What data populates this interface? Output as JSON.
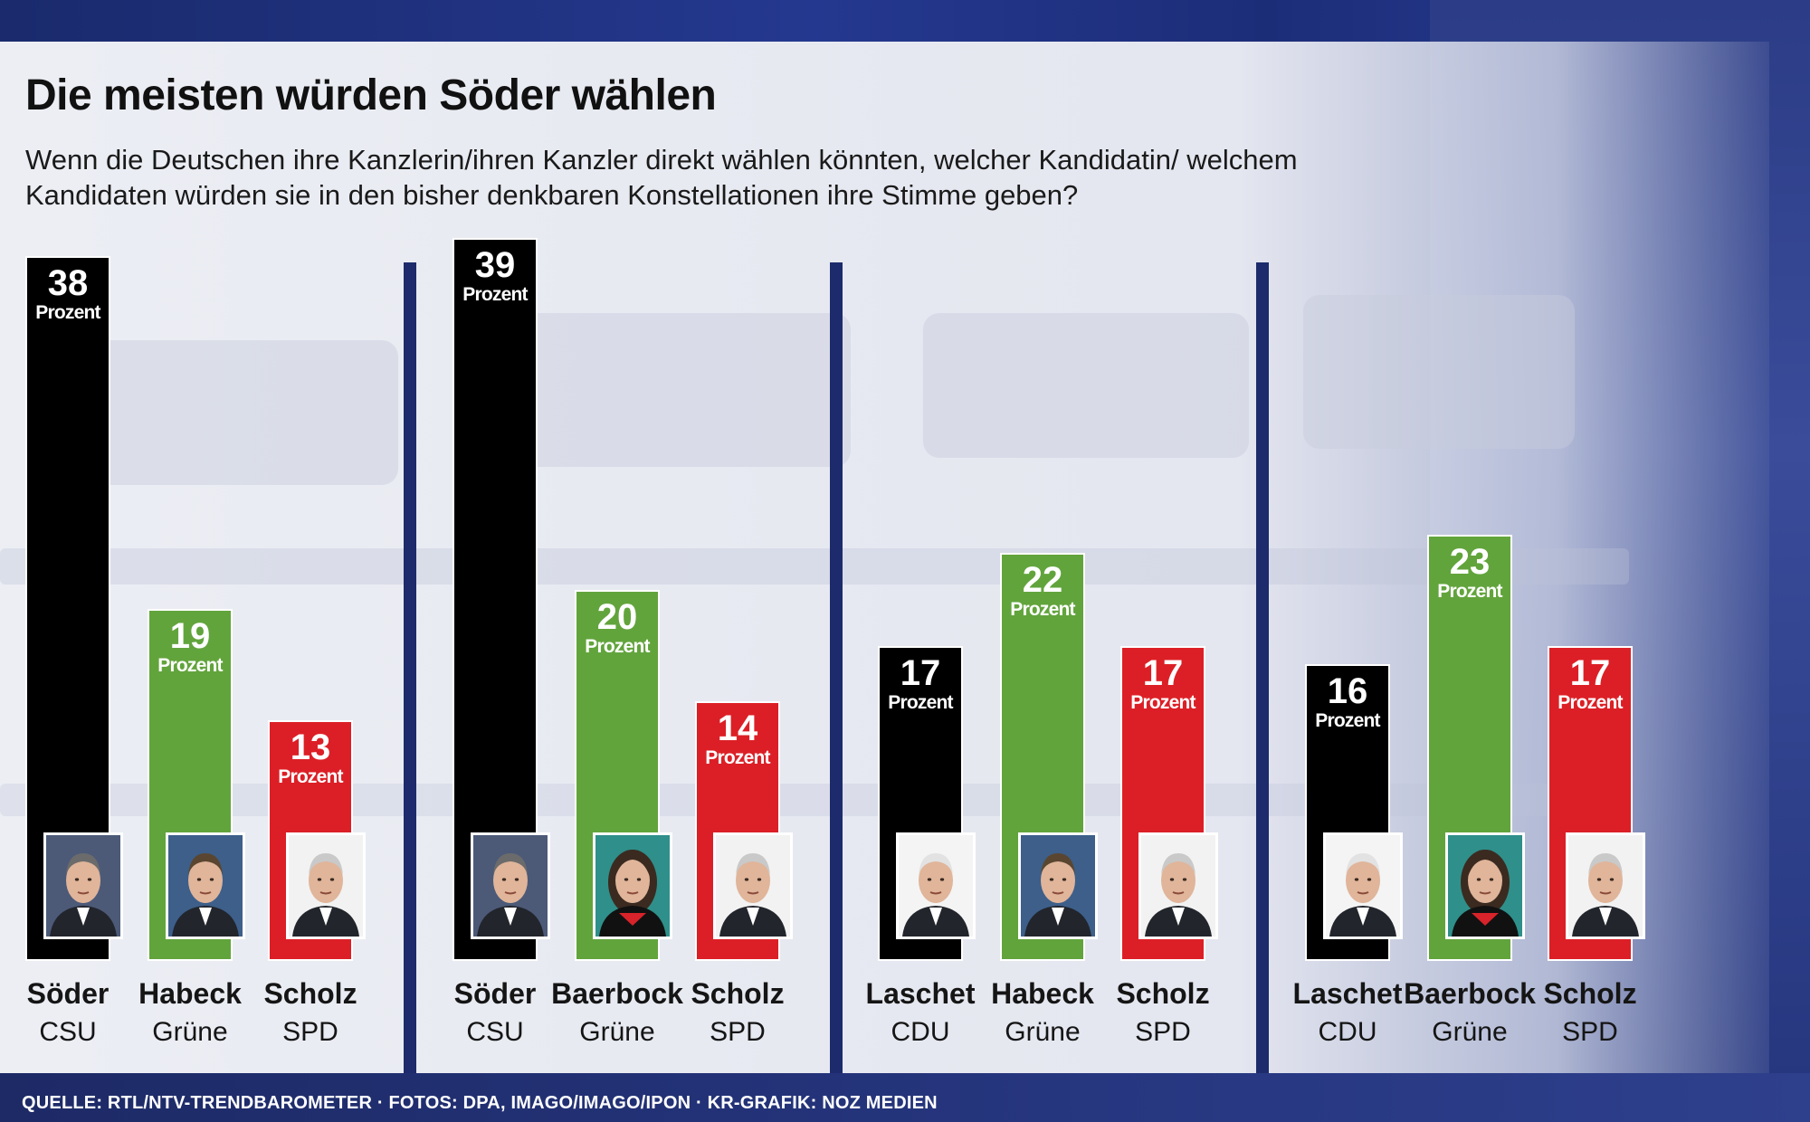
{
  "header": {
    "title": "Die meisten würden Söder wählen",
    "subtitle": "Wenn die Deutschen ihre Kanzlerin/ihren Kanzler direkt wählen könnten, welcher Kandidatin/ welchem Kandidaten würden sie in den bisher denkbaren Konstellationen ihre Stimme geben?"
  },
  "footer": {
    "source": "QUELLE: RTL/NTV-TRENDBAROMETER · FOTOS: DPA, IMAGO/IMAGO/IPON · KR-GRAFIK: NOZ MEDIEN"
  },
  "colors": {
    "union": "#000000",
    "gruene": "#62a43c",
    "spd": "#dc1f26",
    "divider": "#1d2b6c"
  },
  "unit_label": "Prozent",
  "chart_data": [
    {
      "type": "bar",
      "categories": [
        "Söder",
        "Habeck",
        "Scholz"
      ],
      "parties": [
        "CSU",
        "Grüne",
        "SPD"
      ],
      "values": [
        38,
        19,
        13
      ],
      "colors": [
        "#000000",
        "#62a43c",
        "#dc1f26"
      ],
      "photos": [
        "soeder-photo",
        "habeck-photo",
        "scholz-photo"
      ]
    },
    {
      "type": "bar",
      "categories": [
        "Söder",
        "Baerbock",
        "Scholz"
      ],
      "parties": [
        "CSU",
        "Grüne",
        "SPD"
      ],
      "values": [
        39,
        20,
        14
      ],
      "colors": [
        "#000000",
        "#62a43c",
        "#dc1f26"
      ],
      "photos": [
        "soeder-photo",
        "baerbock-photo",
        "scholz-photo"
      ]
    },
    {
      "type": "bar",
      "categories": [
        "Laschet",
        "Habeck",
        "Scholz"
      ],
      "parties": [
        "CDU",
        "Grüne",
        "SPD"
      ],
      "values": [
        17,
        22,
        17
      ],
      "colors": [
        "#000000",
        "#62a43c",
        "#dc1f26"
      ],
      "photos": [
        "laschet-photo",
        "habeck-photo",
        "scholz-photo"
      ]
    },
    {
      "type": "bar",
      "categories": [
        "Laschet",
        "Baerbock",
        "Scholz"
      ],
      "parties": [
        "CDU",
        "Grüne",
        "SPD"
      ],
      "values": [
        16,
        23,
        17
      ],
      "colors": [
        "#000000",
        "#62a43c",
        "#dc1f26"
      ],
      "photos": [
        "laschet-photo",
        "baerbock-photo",
        "scholz-photo"
      ]
    }
  ]
}
